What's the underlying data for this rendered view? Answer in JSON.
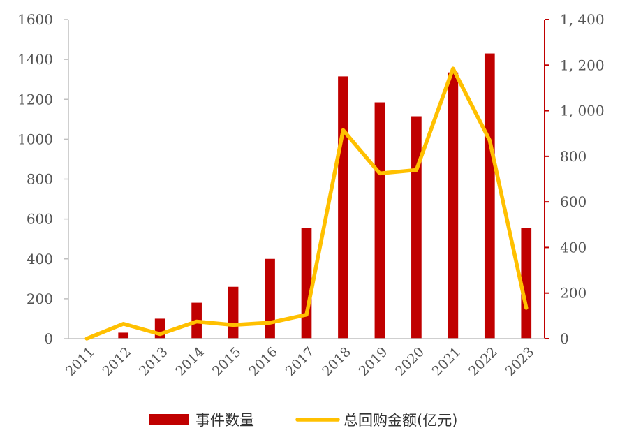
{
  "chart_data": {
    "type": "bar",
    "categories": [
      "2011",
      "2012",
      "2013",
      "2014",
      "2015",
      "2016",
      "2017",
      "2018",
      "2019",
      "2020",
      "2021",
      "2022",
      "2023"
    ],
    "series": [
      {
        "name": "事件数量",
        "type": "bar",
        "axis": "left",
        "color": "#C00000",
        "values": [
          0,
          30,
          100,
          180,
          260,
          400,
          555,
          1315,
          1185,
          1115,
          1335,
          1430,
          555
        ]
      },
      {
        "name": "总回购金额(亿元)",
        "type": "line",
        "axis": "right",
        "color": "#FFC000",
        "values": [
          0,
          65,
          20,
          75,
          60,
          70,
          105,
          915,
          725,
          740,
          1185,
          870,
          135
        ]
      }
    ],
    "y_left": {
      "min": 0,
      "max": 1600,
      "ticks": [
        0,
        200,
        400,
        600,
        800,
        1000,
        1200,
        1400,
        1600
      ],
      "tick_labels": [
        "0",
        "200",
        "400",
        "600",
        "800",
        "1000",
        "1200",
        "1400",
        "1600"
      ]
    },
    "y_right": {
      "min": 0,
      "max": 1400,
      "ticks": [
        0,
        200,
        400,
        600,
        800,
        1000,
        1200,
        1400
      ],
      "tick_labels": [
        "0",
        "200",
        "400",
        "600",
        "800",
        "1, 000",
        "1, 200",
        "1, 400"
      ]
    },
    "grid": false,
    "legend": "bottom",
    "title": "",
    "xlabel": "",
    "ylabel": ""
  },
  "colors": {
    "bar": "#C00000",
    "line": "#FFC000",
    "axis_left": "#BFBFBF",
    "axis_right": "#C00000"
  }
}
